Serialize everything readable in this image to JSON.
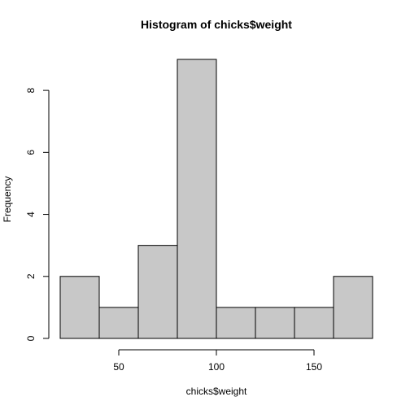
{
  "chart_data": {
    "type": "bar",
    "title": "Histogram of chicks$weight",
    "xlabel": "chicks$weight",
    "ylabel": "Frequency",
    "bins": [
      {
        "start": 20,
        "end": 40,
        "count": 2
      },
      {
        "start": 40,
        "end": 60,
        "count": 1
      },
      {
        "start": 60,
        "end": 80,
        "count": 3
      },
      {
        "start": 80,
        "end": 100,
        "count": 9
      },
      {
        "start": 100,
        "end": 120,
        "count": 1
      },
      {
        "start": 120,
        "end": 140,
        "count": 1
      },
      {
        "start": 140,
        "end": 160,
        "count": 1
      },
      {
        "start": 160,
        "end": 180,
        "count": 2
      }
    ],
    "x_ticks": [
      50,
      100,
      150
    ],
    "y_ticks": [
      0,
      2,
      4,
      6,
      8
    ],
    "xlim": [
      20,
      180
    ],
    "ylim": [
      0,
      9
    ],
    "bar_color": "#c8c8c8",
    "grid": false
  }
}
